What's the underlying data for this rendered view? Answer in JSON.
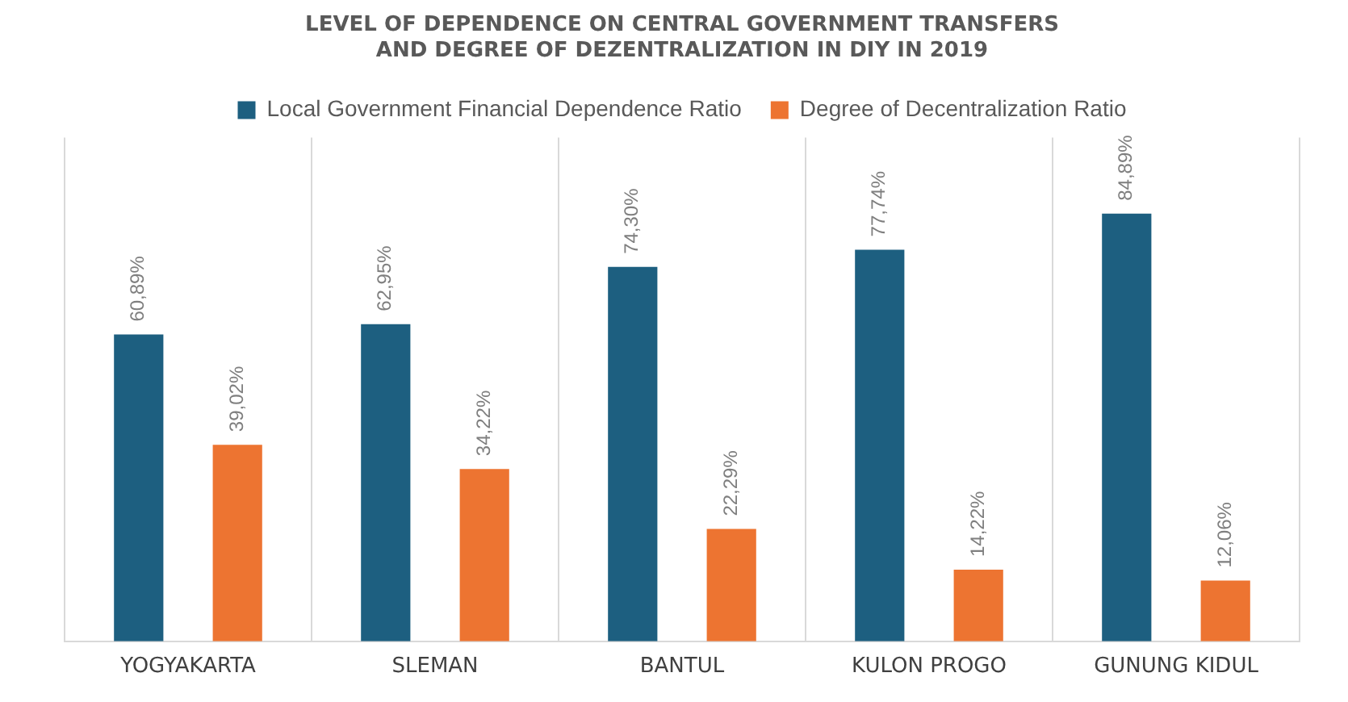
{
  "chart_data": {
    "type": "bar",
    "title": "LEVEL OF DEPENDENCE ON CENTRAL GOVERNMENT TRANSFERS\nAND DEGREE OF DEZENTRALIZATION IN DIY IN 2019",
    "categories": [
      "YOGYAKARTA",
      "SLEMAN",
      "BANTUL",
      "KULON PROGO",
      "GUNUNG KIDUL"
    ],
    "series": [
      {
        "name": "Local Government Financial Dependence Ratio",
        "color": "#1d5f80",
        "values": [
          60.89,
          62.95,
          74.3,
          77.74,
          84.89
        ],
        "value_labels": [
          "60,89%",
          "62,95%",
          "74,30%",
          "77,74%",
          "84,89%"
        ]
      },
      {
        "name": "Degree of Decentralization Ratio",
        "color": "#ed7431",
        "values": [
          39.02,
          34.22,
          22.29,
          14.22,
          12.06
        ],
        "value_labels": [
          "39,02%",
          "34,22%",
          "22,29%",
          "14,22%",
          "12,06%"
        ]
      }
    ],
    "ylim": [
      0,
      100
    ],
    "grid": "x",
    "legend": "top",
    "tick_labels": "x"
  }
}
